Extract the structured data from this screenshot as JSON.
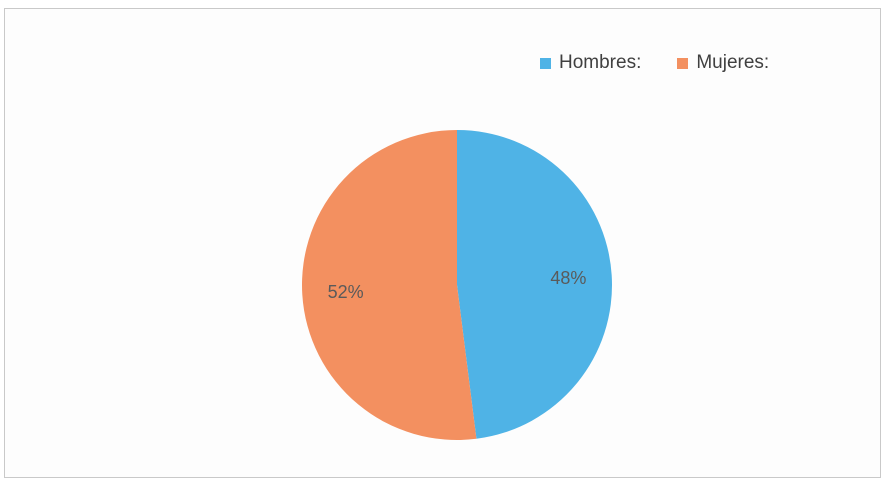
{
  "chart_data": {
    "type": "pie",
    "title": "",
    "categories": [
      "Hombres:",
      "Mujeres:"
    ],
    "values": [
      48,
      52
    ],
    "labels": [
      "48%",
      "52%"
    ],
    "colors": [
      "#4fb3e6",
      "#f39060"
    ],
    "start_angle_deg": 0,
    "direction": "clockwise",
    "legend_position": "top-right"
  }
}
